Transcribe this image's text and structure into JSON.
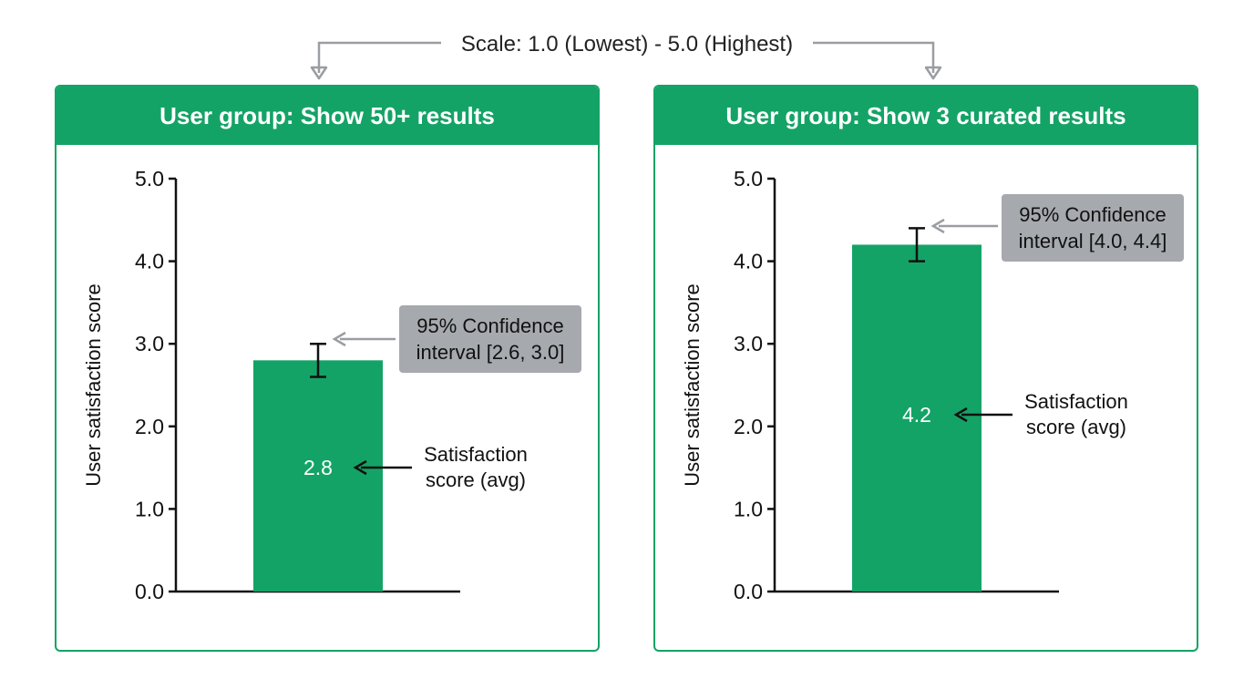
{
  "scale_note": "Scale: 1.0 (Lowest) - 5.0 (Highest)",
  "colors": {
    "bar": "#14a366",
    "ci_box": "#a6a9ae",
    "arrow_gray": "#9a9da2",
    "axis": "#111111"
  },
  "chart_data": [
    {
      "type": "bar",
      "title": "User group: Show 50+ results",
      "ylabel": "User satisfaction score",
      "xlabel": "",
      "ylim": [
        0,
        5
      ],
      "yticks": [
        "0.0",
        "1.0",
        "2.0",
        "3.0",
        "4.0",
        "5.0"
      ],
      "grid": false,
      "value": 2.8,
      "value_label": "2.8",
      "ci": [
        2.6,
        3.0
      ],
      "ci_label": [
        "95% Confidence",
        "interval [2.6, 3.0]"
      ],
      "value_annotation": [
        "Satisfaction",
        "score (avg)"
      ]
    },
    {
      "type": "bar",
      "title": "User group: Show 3 curated results",
      "ylabel": "User satisfaction score",
      "xlabel": "",
      "ylim": [
        0,
        5
      ],
      "yticks": [
        "0.0",
        "1.0",
        "2.0",
        "3.0",
        "4.0",
        "5.0"
      ],
      "grid": false,
      "value": 4.2,
      "value_label": "4.2",
      "ci": [
        4.0,
        4.4
      ],
      "ci_label": [
        "95% Confidence",
        "interval [4.0, 4.4]"
      ],
      "value_annotation": [
        "Satisfaction",
        "score (avg)"
      ]
    }
  ]
}
